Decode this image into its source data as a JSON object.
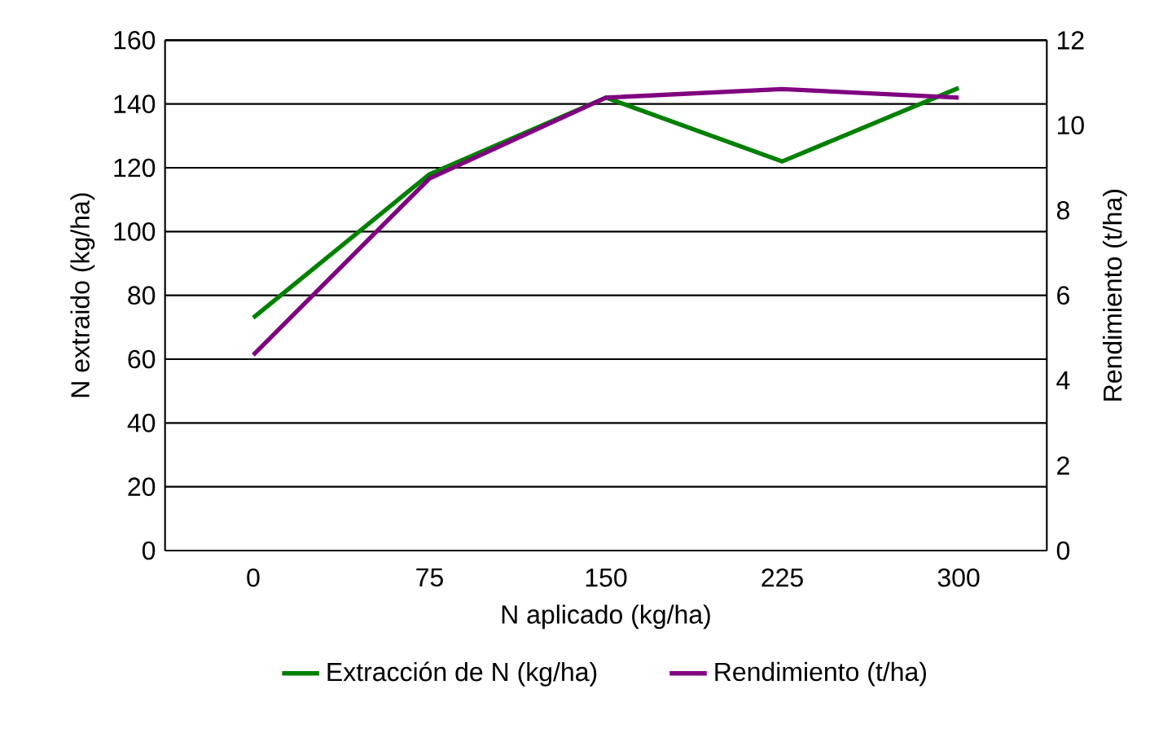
{
  "chart_data": {
    "type": "line",
    "xlabel": "N aplicado (kg/ha)",
    "ylabel": "N extraido (kg/ha)",
    "y2label": "Rendimiento (t/ha)",
    "categories": [
      "0",
      "75",
      "150",
      "225",
      "300"
    ],
    "series": [
      {
        "name": "Extracción de N (kg/ha)",
        "color": "#008000",
        "values": [
          73,
          118,
          142,
          122,
          145
        ]
      },
      {
        "name": "Rendimiento (t/ha)",
        "color": "#800080",
        "axis": "y2",
        "values": [
          4.6,
          8.75,
          10.65,
          10.85,
          10.65
        ]
      }
    ],
    "ylim": [
      0,
      160
    ],
    "yticks": [
      0,
      20,
      40,
      60,
      80,
      100,
      120,
      140,
      160
    ],
    "y2lim": [
      0,
      12
    ],
    "y2ticks": [
      0,
      2,
      4,
      6,
      8,
      10,
      12
    ],
    "grid": "y",
    "legend": "bottom",
    "marker": "none",
    "line_style": "solid"
  }
}
